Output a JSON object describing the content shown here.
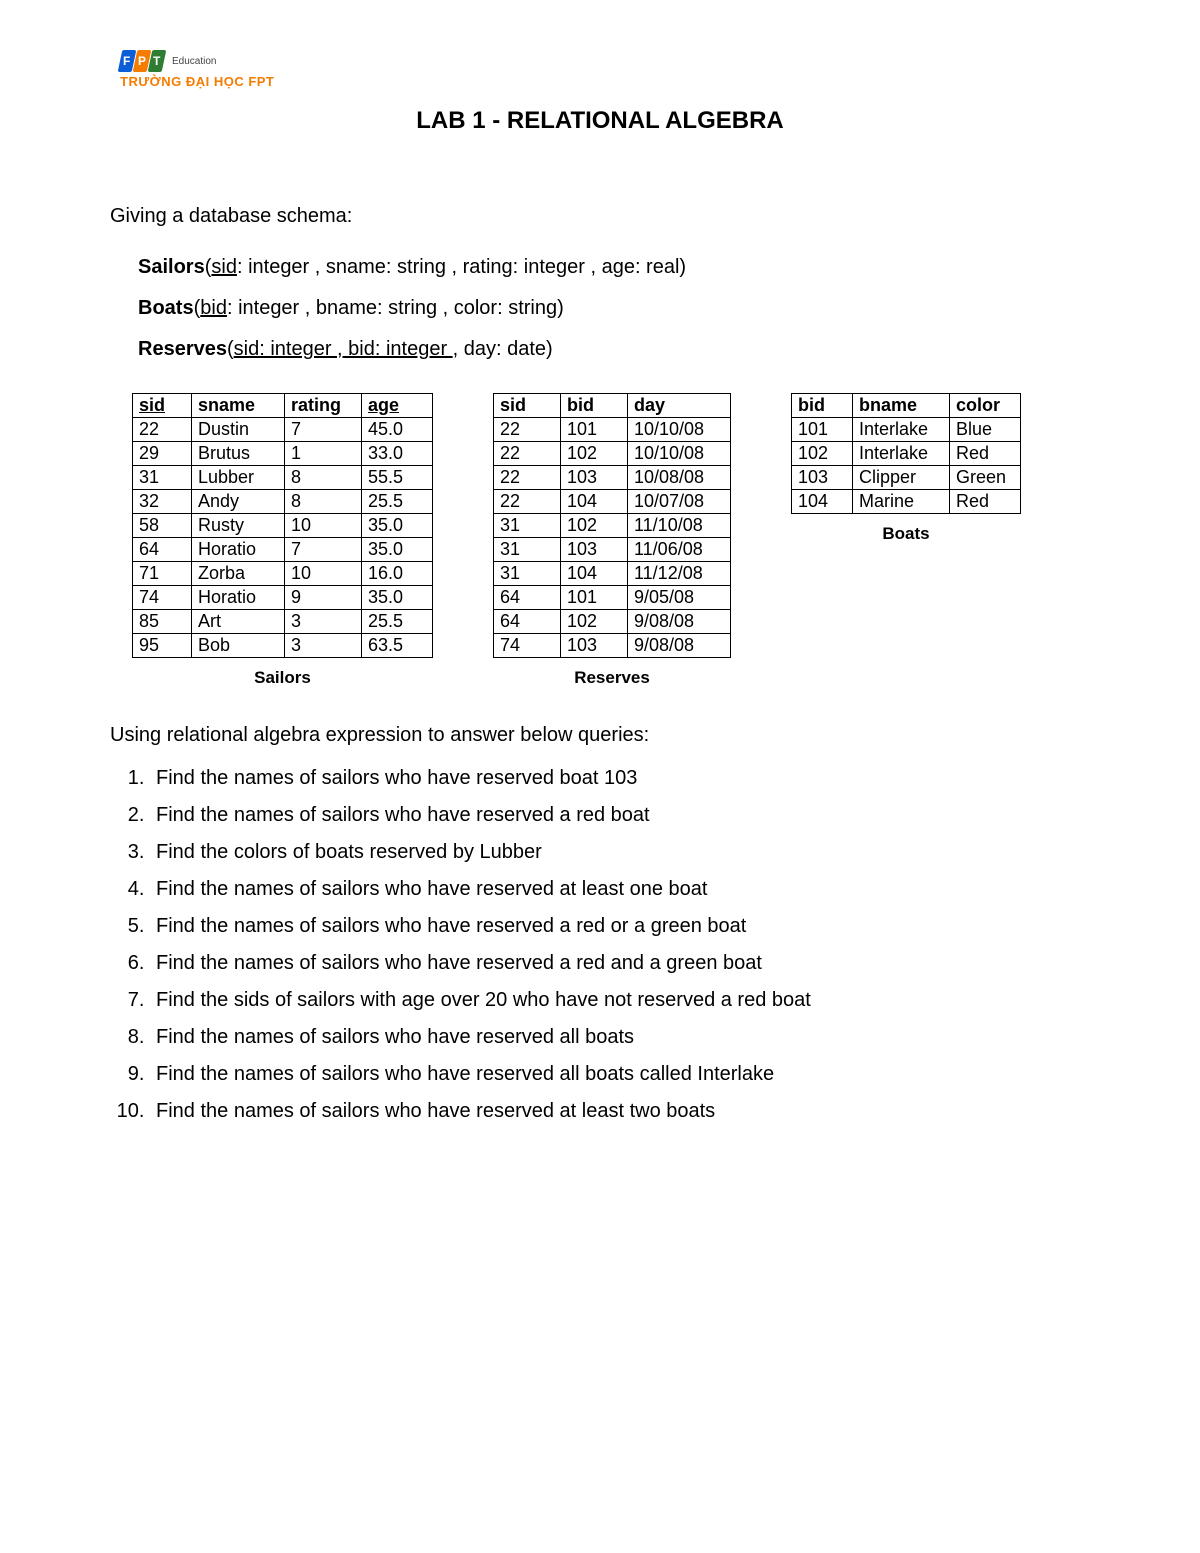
{
  "logo": {
    "letters": [
      "F",
      "P",
      "T"
    ],
    "box_colors": [
      "#0b5ed7",
      "#f57c00",
      "#2e7d32"
    ],
    "edu_text": "Education",
    "subtitle": "TRƯỜNG ĐẠI HỌC FPT",
    "subtitle_color": "#f57c00"
  },
  "title": "LAB 1 - RELATIONAL ALGEBRA",
  "intro": "Giving a database schema:",
  "schemas": {
    "s1": {
      "name": "Sailors",
      "keys": "sid",
      "rest": ": integer , sname: string , rating: integer , age: real)"
    },
    "s2": {
      "name": "Boats",
      "keys": "bid",
      "rest": ": integer , bname: string , color: string)"
    },
    "s3": {
      "name": "Reserves",
      "keys": "sid: integer , bid: integer ",
      "rest": ", day: date)"
    }
  },
  "sailors": {
    "caption": "Sailors",
    "columns": [
      "sid",
      "sname",
      "rating",
      "age"
    ],
    "header_underline": [
      true,
      false,
      false,
      true
    ],
    "rows": [
      [
        "22",
        "Dustin",
        "7",
        "45.0"
      ],
      [
        "29",
        "Brutus",
        "1",
        "33.0"
      ],
      [
        "31",
        "Lubber",
        "8",
        "55.5"
      ],
      [
        "32",
        "Andy",
        "8",
        "25.5"
      ],
      [
        "58",
        "Rusty",
        "10",
        "35.0"
      ],
      [
        "64",
        "Horatio",
        "7",
        "35.0"
      ],
      [
        "71",
        "Zorba",
        "10",
        "16.0"
      ],
      [
        "74",
        "Horatio",
        "9",
        "35.0"
      ],
      [
        "85",
        "Art",
        "3",
        "25.5"
      ],
      [
        "95",
        "Bob",
        "3",
        "63.5"
      ]
    ],
    "col_widths": [
      "44px",
      "78px",
      "62px",
      "56px"
    ]
  },
  "reserves": {
    "caption": "Reserves",
    "columns": [
      "sid",
      "bid",
      "day"
    ],
    "header_underline": [
      false,
      false,
      false
    ],
    "rows": [
      [
        "22",
        "101",
        "10/10/08"
      ],
      [
        "22",
        "102",
        "10/10/08"
      ],
      [
        "22",
        "103",
        "10/08/08"
      ],
      [
        "22",
        "104",
        "10/07/08"
      ],
      [
        "31",
        "102",
        "11/10/08"
      ],
      [
        "31",
        "103",
        "11/06/08"
      ],
      [
        "31",
        "104",
        "11/12/08"
      ],
      [
        "64",
        "101",
        "9/05/08"
      ],
      [
        "64",
        "102",
        "9/08/08"
      ],
      [
        "74",
        "103",
        "9/08/08"
      ]
    ],
    "col_widths": [
      "52px",
      "52px",
      "88px"
    ]
  },
  "boats": {
    "caption": "Boats",
    "columns": [
      "bid",
      "bname",
      "color"
    ],
    "header_underline": [
      false,
      false,
      false
    ],
    "rows": [
      [
        "101",
        "Interlake",
        "Blue"
      ],
      [
        "102",
        "Interlake",
        "Red"
      ],
      [
        "103",
        "Clipper",
        "Green"
      ],
      [
        "104",
        "Marine",
        "Red"
      ]
    ],
    "col_widths": [
      "46px",
      "82px",
      "56px"
    ]
  },
  "queries_intro": "Using relational algebra expression to answer below queries:",
  "queries": [
    "Find the names of sailors who have reserved boat 103",
    "Find the names of sailors who have reserved a red boat",
    "Find the colors of boats reserved by Lubber",
    "Find the names of sailors who have reserved at least one boat",
    "Find the names of sailors who have reserved a red or a green boat",
    "Find the names of sailors who have reserved a red and a green boat",
    "Find the sids of sailors with age over 20 who have not reserved a red boat",
    "Find the names of sailors who have reserved all boats",
    "Find the names of sailors who have reserved all boats called Interlake",
    "Find the names of sailors who have reserved at least two boats"
  ],
  "style": {
    "page_bg": "#ffffff",
    "text_color": "#000000",
    "border_color": "#000000",
    "body_fontsize": 20,
    "title_fontsize": 24,
    "table_fontsize": 18
  }
}
